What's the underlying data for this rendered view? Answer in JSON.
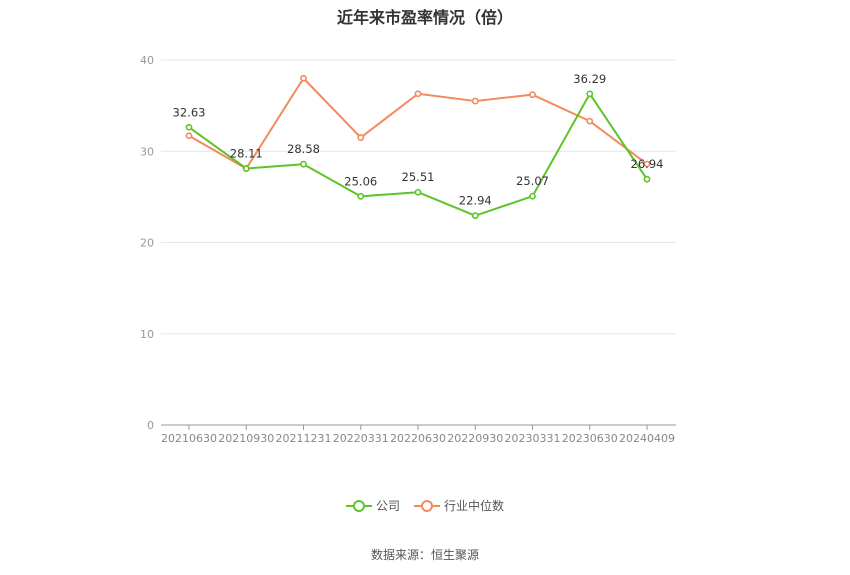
{
  "chart_data": {
    "type": "line",
    "title": "近年来市盈率情况（倍）",
    "categories": [
      "20210630",
      "20210930",
      "20211231",
      "20220331",
      "20220630",
      "20220930",
      "20230331",
      "20230630",
      "20240409"
    ],
    "ylim": [
      0,
      40
    ],
    "yticks": [
      0,
      10,
      20,
      30,
      40
    ],
    "grid": true,
    "legend_position": "bottom",
    "series": [
      {
        "name": "公司",
        "color": "#5ec429",
        "values": [
          32.63,
          28.11,
          28.58,
          25.06,
          25.51,
          22.94,
          25.07,
          36.29,
          26.94
        ],
        "labels": [
          "32.63",
          "28.11",
          "28.58",
          "25.06",
          "25.51",
          "22.94",
          "25.07",
          "36.29",
          "26.94"
        ]
      },
      {
        "name": "行业中位数",
        "color": "#f28a5e",
        "values": [
          31.7,
          28.1,
          38.0,
          31.5,
          36.3,
          35.5,
          36.2,
          33.3,
          28.6
        ]
      }
    ]
  },
  "source": "数据来源：恒生聚源"
}
